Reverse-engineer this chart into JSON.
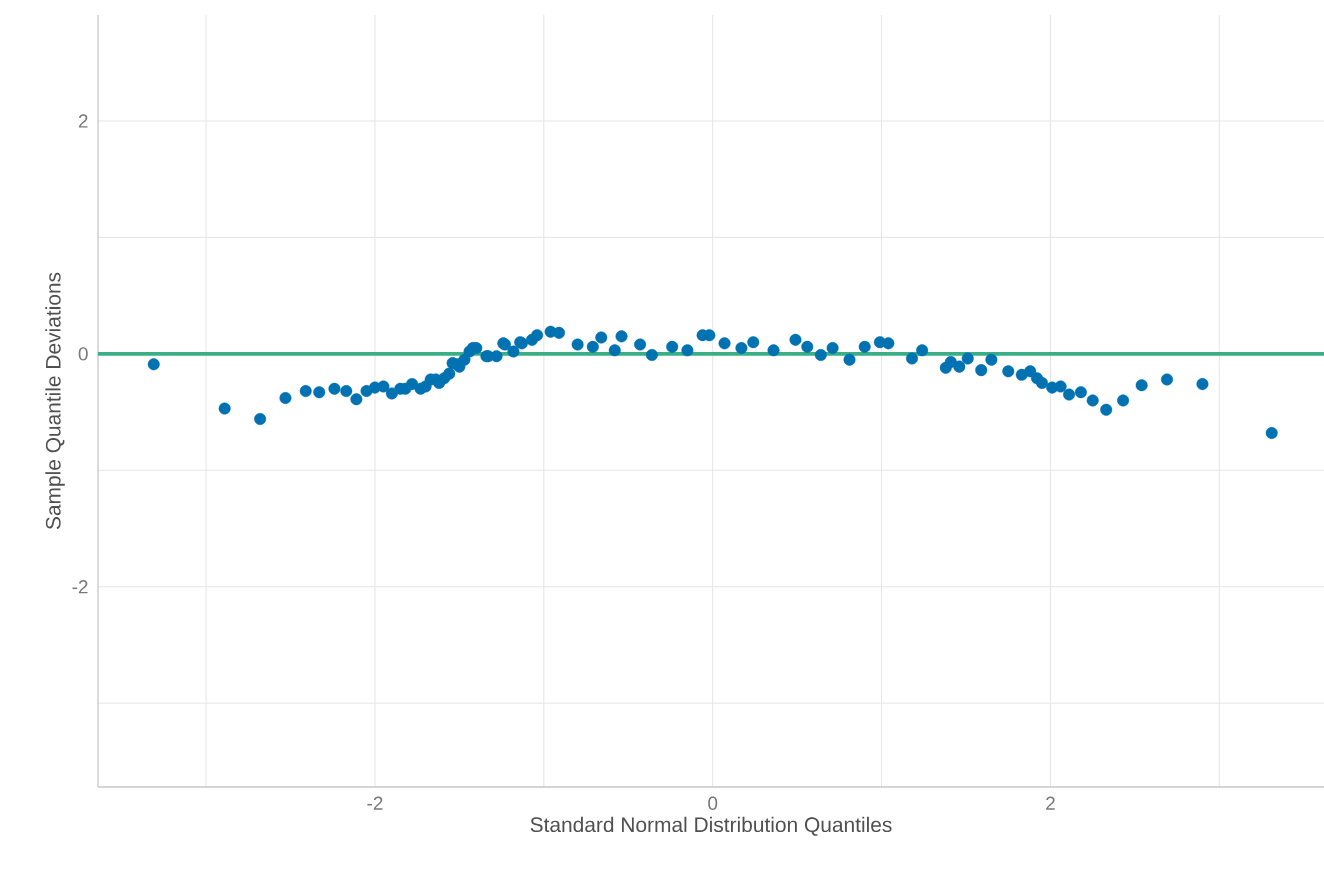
{
  "chart_data": {
    "type": "scatter",
    "xlabel": "Standard Normal Distribution Quantiles",
    "ylabel": "Sample Quantile Deviations",
    "x": [
      -3.31,
      -2.89,
      -2.68,
      -2.53,
      -2.41,
      -2.33,
      -2.24,
      -2.17,
      -2.11,
      -2.05,
      -2.0,
      -1.95,
      -1.9,
      -1.85,
      -1.82,
      -1.78,
      -1.73,
      -1.7,
      -1.67,
      -1.64,
      -1.62,
      -1.59,
      -1.56,
      -1.54,
      -1.51,
      -1.5,
      -1.47,
      -1.44,
      -1.42,
      -1.4,
      -1.34,
      -1.33,
      -1.28,
      -1.24,
      -1.23,
      -1.18,
      -1.14,
      -1.13,
      -1.07,
      -1.04,
      -0.96,
      -0.91,
      -0.8,
      -0.71,
      -0.66,
      -0.58,
      -0.54,
      -0.43,
      -0.36,
      -0.24,
      -0.15,
      -0.06,
      -0.02,
      0.07,
      0.17,
      0.24,
      0.36,
      0.49,
      0.56,
      0.64,
      0.71,
      0.81,
      0.9,
      0.99,
      1.04,
      1.18,
      1.24,
      1.38,
      1.41,
      1.46,
      1.51,
      1.59,
      1.65,
      1.75,
      1.83,
      1.88,
      1.92,
      1.95,
      2.01,
      2.06,
      2.11,
      2.18,
      2.25,
      2.33,
      2.43,
      2.54,
      2.69,
      2.9,
      3.31
    ],
    "values": [
      -0.09,
      -0.47,
      -0.56,
      -0.38,
      -0.32,
      -0.33,
      -0.3,
      -0.32,
      -0.39,
      -0.32,
      -0.29,
      -0.28,
      -0.34,
      -0.3,
      -0.3,
      -0.26,
      -0.3,
      -0.28,
      -0.22,
      -0.22,
      -0.25,
      -0.21,
      -0.17,
      -0.08,
      -0.09,
      -0.11,
      -0.05,
      0.02,
      0.05,
      0.05,
      -0.02,
      -0.02,
      -0.02,
      0.09,
      0.08,
      0.02,
      0.1,
      0.09,
      0.12,
      0.16,
      0.19,
      0.18,
      0.08,
      0.06,
      0.14,
      0.03,
      0.15,
      0.08,
      -0.01,
      0.06,
      0.03,
      0.16,
      0.16,
      0.09,
      0.05,
      0.1,
      0.03,
      0.12,
      0.06,
      -0.01,
      0.05,
      -0.05,
      0.06,
      0.1,
      0.09,
      -0.04,
      0.03,
      -0.12,
      -0.07,
      -0.11,
      -0.04,
      -0.14,
      -0.05,
      -0.15,
      -0.18,
      -0.15,
      -0.21,
      -0.25,
      -0.29,
      -0.28,
      -0.35,
      -0.33,
      -0.4,
      -0.48,
      -0.4,
      -0.27,
      -0.22,
      -0.26,
      -0.68
    ],
    "color": "#0072b2",
    "marker": "circle",
    "xlim": [
      -3.64,
      3.62
    ],
    "ylim": [
      -3.72,
      2.91
    ],
    "xticks": [
      {
        "value": -3,
        "label": null
      },
      -2,
      {
        "value": -1,
        "label": null
      },
      0,
      {
        "value": 1,
        "label": null
      },
      2,
      {
        "value": 3,
        "label": null
      }
    ],
    "yticks": [
      {
        "value": -3,
        "label": null
      },
      -2,
      {
        "value": -1,
        "label": null
      },
      0,
      {
        "value": 1,
        "label": null
      },
      2
    ],
    "grid": true,
    "ref_lines": [
      {
        "axis": "y",
        "value": 0,
        "color": "#3aaf85"
      }
    ]
  }
}
